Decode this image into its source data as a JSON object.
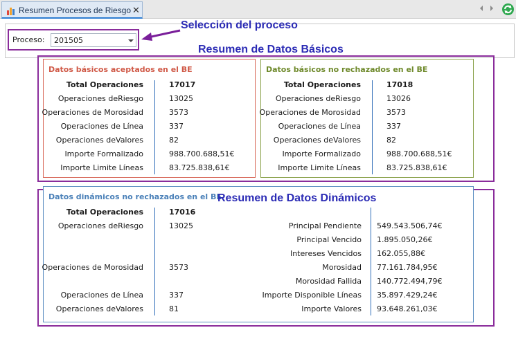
{
  "tab": {
    "title": "Resumen Procesos de Riesgo",
    "close": "✕"
  },
  "process": {
    "label": "Proceso:",
    "value": "201505"
  },
  "annotations": {
    "seleccion": "Selección del proceso",
    "basicos": "Resumen de Datos Básicos",
    "dinamicos": "Resumen de Datos Dinámicos"
  },
  "colors": {
    "frame": "#8a2c9b",
    "accepted": "#d05a48",
    "not_rejected": "#6f8a2c",
    "dynamic": "#4a80b8",
    "annotation": "#2b2bb5"
  },
  "basic_accepted": {
    "title": "Datos básicos aceptados en el BE",
    "rows": [
      {
        "label": "Total Operaciones",
        "value": "17017"
      },
      {
        "label": "Operaciones deRiesgo",
        "value": "13025"
      },
      {
        "label": "Operaciones de Morosidad",
        "value": "3573"
      },
      {
        "label": "Operaciones de Línea",
        "value": "337"
      },
      {
        "label": "Operaciones deValores",
        "value": "82"
      },
      {
        "label": "Importe Formalizado",
        "value": "988.700.688,51€"
      },
      {
        "label": "Importe Limite Líneas",
        "value": "83.725.838,61€"
      }
    ]
  },
  "basic_not_rejected": {
    "title": "Datos básicos no rechazados en el BE",
    "rows": [
      {
        "label": "Total Operaciones",
        "value": "17018"
      },
      {
        "label": "Operaciones deRiesgo",
        "value": "13026"
      },
      {
        "label": "Operaciones de Morosidad",
        "value": "3573"
      },
      {
        "label": "Operaciones de Línea",
        "value": "337"
      },
      {
        "label": "Operaciones deValores",
        "value": "82"
      },
      {
        "label": "Importe Formalizado",
        "value": "988.700.688,51€"
      },
      {
        "label": "Importe Limite Líneas",
        "value": "83.725.838,61€"
      }
    ]
  },
  "dynamic": {
    "title": "Datos dinámicos no rechazados en el BE",
    "left_rows": [
      {
        "label": "Total Operaciones",
        "value": "17016"
      },
      {
        "label": "Operaciones deRiesgo",
        "value": "13025"
      },
      {
        "label": "Operaciones de Morosidad",
        "value": "3573"
      },
      {
        "label": "Operaciones de Línea",
        "value": "337"
      },
      {
        "label": "Operaciones deValores",
        "value": "81"
      }
    ],
    "right_rows": [
      {
        "label": "Principal Pendiente",
        "value": "549.543.506,74€"
      },
      {
        "label": "Principal Vencido",
        "value": "1.895.050,26€"
      },
      {
        "label": "Intereses Vencidos",
        "value": "162.055,88€"
      },
      {
        "label": "Morosidad",
        "value": "77.161.784,95€"
      },
      {
        "label": "Morosidad Fallida",
        "value": "140.772.494,79€"
      },
      {
        "label": "Importe Disponible Líneas",
        "value": "35.897.429,24€"
      },
      {
        "label": "Importe Valores",
        "value": "93.648.261,03€"
      }
    ]
  }
}
